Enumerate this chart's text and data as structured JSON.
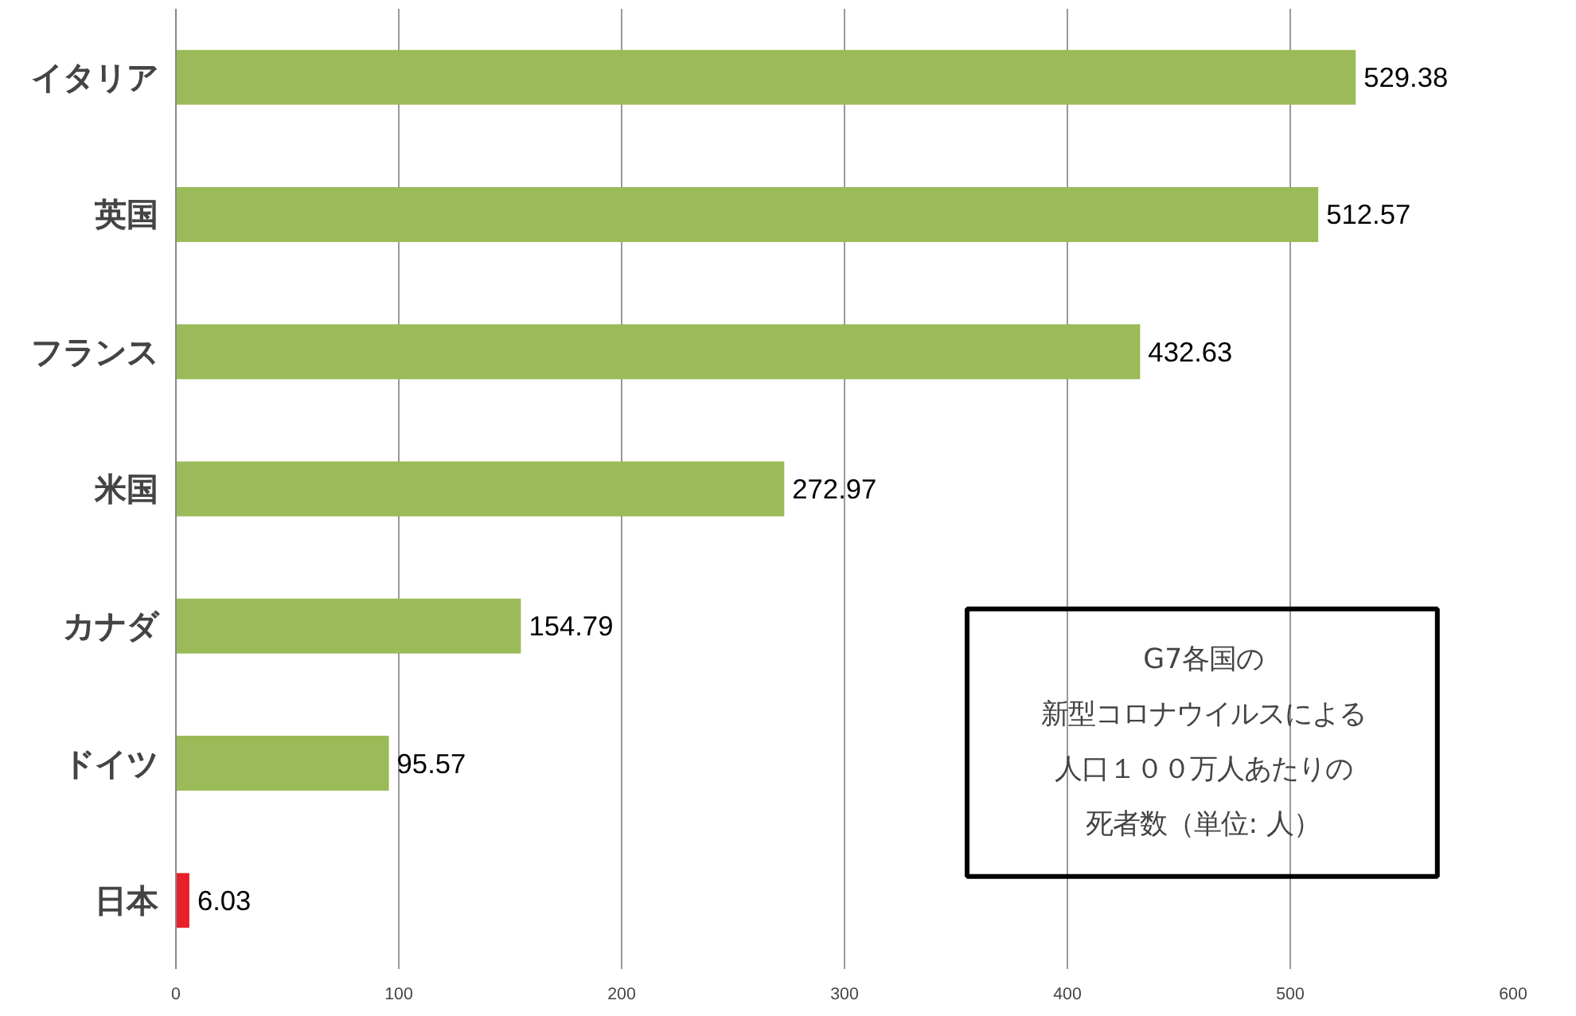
{
  "chart_data": {
    "type": "bar",
    "orientation": "horizontal",
    "categories": [
      "イタリア",
      "英国",
      "フランス",
      "米国",
      "カナダ",
      "ドイツ",
      "日本"
    ],
    "values": [
      529.38,
      512.57,
      432.63,
      272.97,
      154.79,
      95.57,
      6.03
    ],
    "colors": [
      "#9bbb59",
      "#9bbb59",
      "#9bbb59",
      "#9bbb59",
      "#9bbb59",
      "#9bbb59",
      "#e8202a"
    ],
    "xlim": [
      0,
      600
    ],
    "xticks": [
      0,
      100,
      200,
      300,
      400,
      500,
      600
    ],
    "grid": "x",
    "data_labels": true,
    "annotations": [
      "G7各国の",
      "新型コロナウイルスによる",
      "人口１００万人あたりの",
      "死者数（単位: 人）"
    ]
  }
}
